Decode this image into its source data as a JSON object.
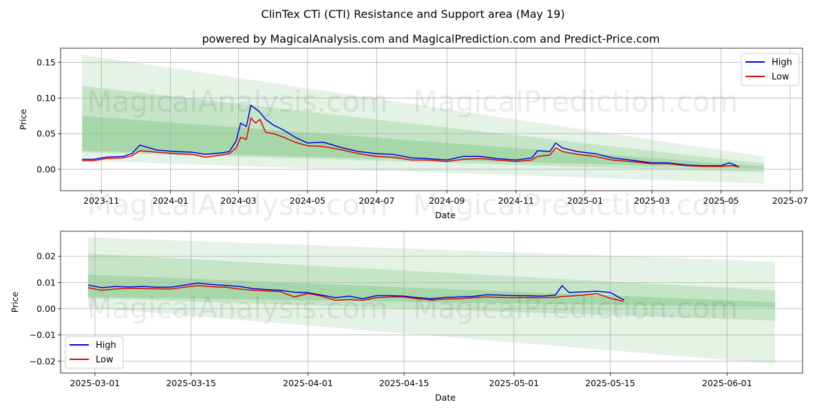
{
  "title": "ClinTex CTi (CTI) Resistance and Support area (May 19)",
  "subtitle": "powered by MagicalAnalysis.com and MagicalPrediction.com and Predict-Price.com",
  "watermarks": [
    "MagicalAnalysis.com",
    "MagicalPrediction.com"
  ],
  "colors": {
    "high": "#0000dd",
    "low": "#dd0000",
    "band": "#4caf50"
  },
  "chart_data": [
    {
      "type": "line",
      "xlabel": "Date",
      "ylabel": "Price",
      "x_ticks": [
        "2023-11",
        "2024-01",
        "2024-03",
        "2024-05",
        "2024-07",
        "2024-09",
        "2024-11",
        "2025-01",
        "2025-03",
        "2025-05",
        "2025-07"
      ],
      "y_ticks": [
        "0.00",
        "0.05",
        "0.10",
        "0.15"
      ],
      "xlim": [
        "2023-09-26",
        "2025-07-12"
      ],
      "ylim": [
        -0.03,
        0.17
      ],
      "legend": "top-right",
      "grid": true,
      "bands": [
        {
          "start": "2023-10-15",
          "end": "2025-06-08",
          "upper": [
            0.161,
            0.018
          ],
          "lower": [
            0.012,
            -0.02
          ],
          "opacity": 0.15
        },
        {
          "start": "2023-10-15",
          "end": "2025-06-08",
          "upper": [
            0.117,
            0.008
          ],
          "lower": [
            0.024,
            -0.004
          ],
          "opacity": 0.2
        },
        {
          "start": "2023-10-15",
          "end": "2025-06-08",
          "upper": [
            0.075,
            0.004
          ],
          "lower": [
            0.026,
            0.001
          ],
          "opacity": 0.25
        }
      ],
      "series": [
        {
          "name": "High",
          "x": [
            "2023-10-15",
            "2023-10-25",
            "2023-11-05",
            "2023-11-20",
            "2023-11-28",
            "2023-12-05",
            "2023-12-20",
            "2024-01-05",
            "2024-01-20",
            "2024-02-01",
            "2024-02-15",
            "2024-02-22",
            "2024-02-28",
            "2024-03-03",
            "2024-03-08",
            "2024-03-12",
            "2024-03-16",
            "2024-03-20",
            "2024-03-25",
            "2024-04-01",
            "2024-04-10",
            "2024-04-20",
            "2024-05-01",
            "2024-05-15",
            "2024-06-01",
            "2024-06-15",
            "2024-07-01",
            "2024-07-15",
            "2024-08-01",
            "2024-08-15",
            "2024-09-01",
            "2024-09-15",
            "2024-10-01",
            "2024-10-15",
            "2024-11-01",
            "2024-11-15",
            "2024-11-20",
            "2024-12-01",
            "2024-12-06",
            "2024-12-12",
            "2024-12-25",
            "2025-01-10",
            "2025-01-25",
            "2025-02-10",
            "2025-03-01",
            "2025-03-15",
            "2025-04-01",
            "2025-04-15",
            "2025-05-01",
            "2025-05-08",
            "2025-05-12",
            "2025-05-17"
          ],
          "values": [
            0.014,
            0.014,
            0.017,
            0.018,
            0.022,
            0.034,
            0.027,
            0.025,
            0.024,
            0.021,
            0.023,
            0.025,
            0.04,
            0.065,
            0.06,
            0.09,
            0.085,
            0.08,
            0.07,
            0.062,
            0.055,
            0.045,
            0.037,
            0.038,
            0.03,
            0.025,
            0.022,
            0.021,
            0.016,
            0.015,
            0.013,
            0.018,
            0.018,
            0.015,
            0.013,
            0.016,
            0.026,
            0.025,
            0.037,
            0.03,
            0.025,
            0.022,
            0.016,
            0.013,
            0.009,
            0.009,
            0.006,
            0.005,
            0.005,
            0.009,
            0.007,
            0.003
          ]
        },
        {
          "name": "Low",
          "x": [
            "2023-10-15",
            "2023-10-25",
            "2023-11-05",
            "2023-11-20",
            "2023-11-28",
            "2023-12-05",
            "2023-12-20",
            "2024-01-05",
            "2024-01-20",
            "2024-02-01",
            "2024-02-15",
            "2024-02-22",
            "2024-02-28",
            "2024-03-03",
            "2024-03-08",
            "2024-03-12",
            "2024-03-16",
            "2024-03-20",
            "2024-03-25",
            "2024-04-01",
            "2024-04-10",
            "2024-04-20",
            "2024-05-01",
            "2024-05-15",
            "2024-06-01",
            "2024-06-15",
            "2024-07-01",
            "2024-07-15",
            "2024-08-01",
            "2024-08-15",
            "2024-09-01",
            "2024-09-15",
            "2024-10-01",
            "2024-10-15",
            "2024-11-01",
            "2024-11-15",
            "2024-11-20",
            "2024-12-01",
            "2024-12-06",
            "2024-12-12",
            "2024-12-25",
            "2025-01-10",
            "2025-01-25",
            "2025-02-10",
            "2025-03-01",
            "2025-03-15",
            "2025-04-01",
            "2025-04-15",
            "2025-05-01",
            "2025-05-08",
            "2025-05-12",
            "2025-05-17"
          ],
          "values": [
            0.012,
            0.012,
            0.015,
            0.016,
            0.019,
            0.026,
            0.024,
            0.022,
            0.021,
            0.017,
            0.02,
            0.022,
            0.03,
            0.045,
            0.042,
            0.072,
            0.065,
            0.07,
            0.052,
            0.05,
            0.045,
            0.038,
            0.033,
            0.032,
            0.027,
            0.022,
            0.018,
            0.017,
            0.013,
            0.013,
            0.011,
            0.014,
            0.015,
            0.013,
            0.011,
            0.013,
            0.018,
            0.02,
            0.03,
            0.025,
            0.021,
            0.018,
            0.013,
            0.011,
            0.008,
            0.008,
            0.005,
            0.004,
            0.004,
            0.005,
            0.005,
            0.003
          ]
        }
      ]
    },
    {
      "type": "line",
      "xlabel": "Date",
      "ylabel": "Price",
      "x_ticks": [
        "2025-03-01",
        "2025-03-15",
        "2025-04-01",
        "2025-04-15",
        "2025-05-01",
        "2025-05-15",
        "2025-06-01"
      ],
      "y_ticks": [
        "−0.02",
        "−0.01",
        "0.00",
        "0.01",
        "0.02"
      ],
      "xlim": [
        "2025-02-24",
        "2025-06-12"
      ],
      "ylim": [
        -0.0245,
        0.0295
      ],
      "legend": "bottom-left",
      "grid": true,
      "bands": [
        {
          "start": "2025-02-28",
          "end": "2025-06-08",
          "upper": [
            0.0272,
            0.018
          ],
          "lower": [
            0.0005,
            -0.021
          ],
          "opacity": 0.15
        },
        {
          "start": "2025-02-28",
          "end": "2025-06-08",
          "upper": [
            0.021,
            0.007
          ],
          "lower": [
            0.004,
            -0.0045
          ],
          "opacity": 0.2
        },
        {
          "start": "2025-02-28",
          "end": "2025-06-08",
          "upper": [
            0.013,
            0.0025
          ],
          "lower": [
            0.0045,
            0.0005
          ],
          "opacity": 0.25
        }
      ],
      "series": [
        {
          "name": "High",
          "x": [
            "2025-02-28",
            "2025-03-02",
            "2025-03-04",
            "2025-03-06",
            "2025-03-08",
            "2025-03-10",
            "2025-03-12",
            "2025-03-14",
            "2025-03-16",
            "2025-03-18",
            "2025-03-20",
            "2025-03-22",
            "2025-03-24",
            "2025-03-26",
            "2025-03-28",
            "2025-03-30",
            "2025-04-01",
            "2025-04-03",
            "2025-04-05",
            "2025-04-07",
            "2025-04-09",
            "2025-04-11",
            "2025-04-13",
            "2025-04-15",
            "2025-04-17",
            "2025-04-19",
            "2025-04-21",
            "2025-04-23",
            "2025-04-25",
            "2025-04-27",
            "2025-04-29",
            "2025-05-01",
            "2025-05-03",
            "2025-05-05",
            "2025-05-07",
            "2025-05-08",
            "2025-05-09",
            "2025-05-11",
            "2025-05-13",
            "2025-05-15",
            "2025-05-17"
          ],
          "values": [
            0.009,
            0.008,
            0.0085,
            0.0083,
            0.0085,
            0.0082,
            0.0082,
            0.009,
            0.0098,
            0.0092,
            0.0089,
            0.0085,
            0.0077,
            0.0073,
            0.007,
            0.0063,
            0.0061,
            0.0052,
            0.0042,
            0.0048,
            0.0038,
            0.005,
            0.005,
            0.0048,
            0.0042,
            0.0038,
            0.0043,
            0.0045,
            0.0047,
            0.0053,
            0.0052,
            0.005,
            0.005,
            0.0048,
            0.0052,
            0.0088,
            0.0062,
            0.0064,
            0.0067,
            0.0062,
            0.0033
          ]
        },
        {
          "name": "Low",
          "x": [
            "2025-02-28",
            "2025-03-02",
            "2025-03-04",
            "2025-03-06",
            "2025-03-08",
            "2025-03-10",
            "2025-03-12",
            "2025-03-14",
            "2025-03-16",
            "2025-03-18",
            "2025-03-20",
            "2025-03-22",
            "2025-03-24",
            "2025-03-26",
            "2025-03-28",
            "2025-03-30",
            "2025-04-01",
            "2025-04-03",
            "2025-04-05",
            "2025-04-07",
            "2025-04-09",
            "2025-04-11",
            "2025-04-13",
            "2025-04-15",
            "2025-04-17",
            "2025-04-19",
            "2025-04-21",
            "2025-04-23",
            "2025-04-25",
            "2025-04-27",
            "2025-04-29",
            "2025-05-01",
            "2025-05-03",
            "2025-05-05",
            "2025-05-07",
            "2025-05-08",
            "2025-05-09",
            "2025-05-11",
            "2025-05-13",
            "2025-05-15",
            "2025-05-17"
          ],
          "values": [
            0.008,
            0.007,
            0.0075,
            0.0078,
            0.0077,
            0.0076,
            0.0075,
            0.0082,
            0.0088,
            0.0084,
            0.0082,
            0.0075,
            0.007,
            0.0068,
            0.0065,
            0.0045,
            0.0058,
            0.0048,
            0.0032,
            0.0035,
            0.0032,
            0.0042,
            0.0045,
            0.0045,
            0.0038,
            0.0033,
            0.0037,
            0.0038,
            0.0042,
            0.0045,
            0.0043,
            0.0042,
            0.0043,
            0.0042,
            0.0043,
            0.0047,
            0.0048,
            0.0052,
            0.0058,
            0.004,
            0.0028
          ]
        }
      ]
    }
  ]
}
